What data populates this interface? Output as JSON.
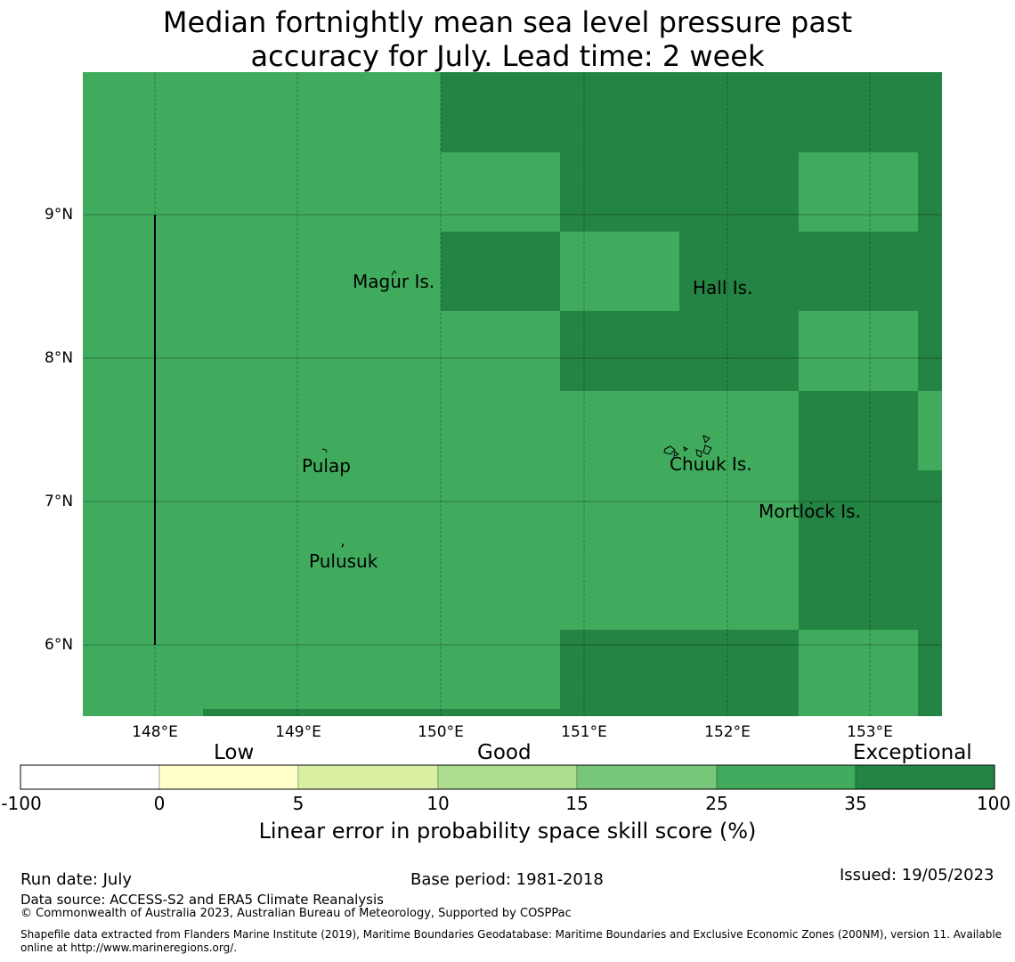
{
  "title": {
    "line1": "Median fortnightly mean sea level pressure past",
    "line2": "accuracy for July. Lead time: 2 week"
  },
  "map": {
    "lat_labels": [
      "9°N",
      "8°N",
      "7°N",
      "6°N"
    ],
    "lon_labels": [
      "148°E",
      "149°E",
      "150°E",
      "151°E",
      "152°E",
      "153°E"
    ],
    "places": [
      "Magur Is.",
      "Hall Is.",
      "Pulap",
      "Chuuk Is.",
      "Mortlock Is.",
      "Pulusuk"
    ],
    "colors": {
      "skill_25_35": "#41ab5d",
      "skill_35_100": "#238443"
    }
  },
  "colorbar": {
    "categories": [
      "Low",
      "Good",
      "Exceptional"
    ],
    "ticks": [
      "-100",
      "0",
      "5",
      "10",
      "15",
      "25",
      "35",
      "100"
    ],
    "colors": [
      "#ffffff",
      "#ffffcc",
      "#d9f0a3",
      "#addd8e",
      "#78c679",
      "#41ab5d",
      "#238443"
    ],
    "label": "Linear error in probability space skill score (%)"
  },
  "footer": {
    "run_date": "Run date: July",
    "base_period": "Base period: 1981-2018",
    "issued": "Issued: 19/05/2023",
    "data_source": "Data source: ACCESS-S2 and ERA5 Climate Reanalysis",
    "copyright": "© Commonwealth of Australia 2023, Australian Bureau of Meteorology, Supported by COSPPac",
    "shapefile_line1": "Shapefile data extracted from Flanders Marine Institute (2019), Maritime Boundaries Geodatabase: Maritime Boundaries and Exclusive Economic Zones (200NM), version 11. Available",
    "shapefile_line2": "online at http://www.marineregions.org/."
  }
}
